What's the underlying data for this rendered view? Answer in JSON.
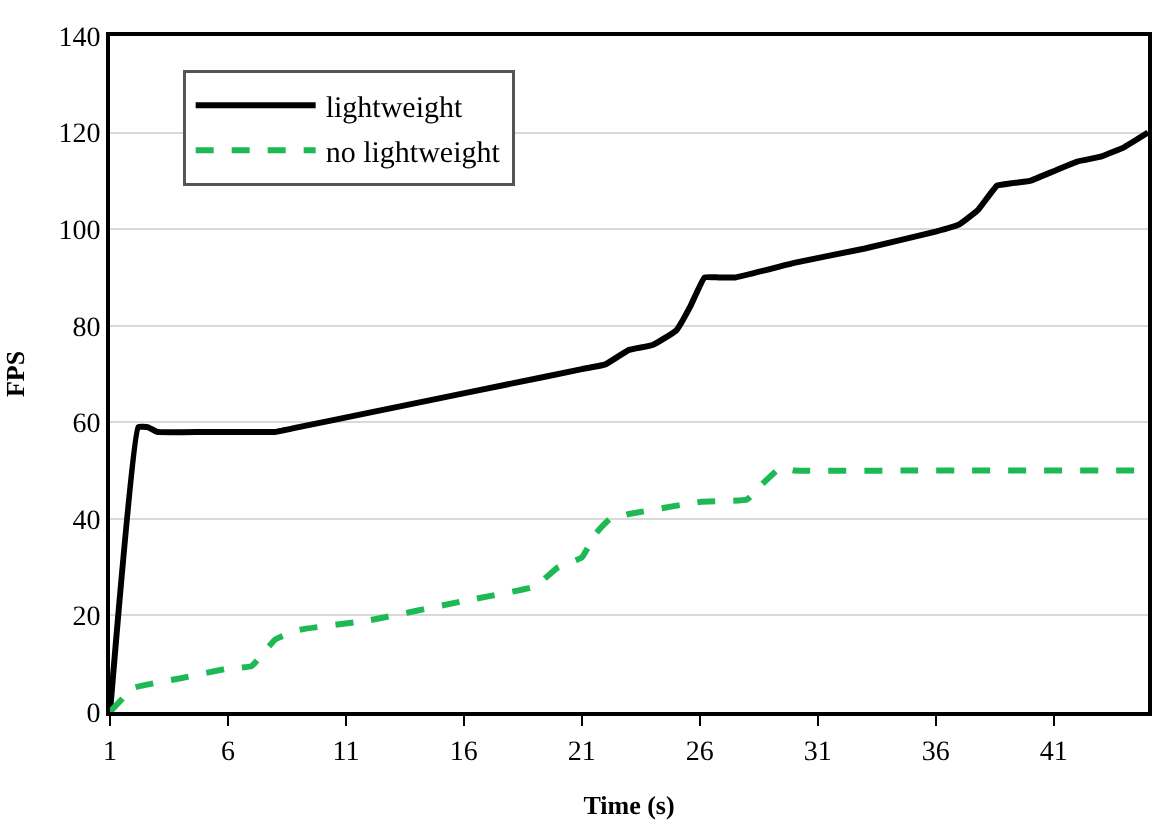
{
  "chart_data": {
    "type": "line",
    "xlabel": "Time (s)",
    "ylabel": "FPS",
    "xlim": [
      1,
      45
    ],
    "xticks": [
      1,
      6,
      11,
      16,
      21,
      26,
      31,
      36,
      41
    ],
    "ylim": [
      0,
      140
    ],
    "yticks": [
      0,
      20,
      40,
      60,
      80,
      100,
      120,
      140
    ],
    "grid": "y",
    "legend": "top left",
    "marker": "none",
    "series": [
      {
        "name": "lightweight",
        "color": "#000000",
        "line_style": "solid",
        "x": [
          1,
          2.2,
          2.6,
          3,
          5,
          7,
          8,
          9,
          12,
          15,
          18,
          21,
          22,
          23,
          24,
          25,
          25.6,
          26.2,
          26.8,
          27.5,
          30,
          33,
          36,
          37,
          37.8,
          38.6,
          39.2,
          40,
          41,
          42,
          43,
          44,
          45
        ],
        "values": [
          0,
          59,
          59,
          58,
          58,
          58,
          58,
          59,
          62,
          65,
          68,
          71,
          72,
          75,
          76,
          79,
          84,
          90,
          90,
          90,
          93,
          96,
          99.5,
          101,
          104,
          109,
          109.5,
          110,
          112,
          114,
          115,
          117,
          120
        ]
      },
      {
        "name": "no lightweight",
        "color": "#1db954",
        "line_style": "dashed",
        "x": [
          1,
          2,
          4,
          6,
          7,
          8,
          9,
          12,
          16,
          19,
          20,
          21,
          21.6,
          22.2,
          23,
          26,
          28,
          28.6,
          29.4,
          30,
          35,
          45
        ],
        "values": [
          0,
          5,
          7,
          9,
          9.5,
          15,
          17,
          19,
          23,
          26,
          30,
          32,
          37,
          40,
          41,
          43.5,
          44,
          47,
          50.5,
          50,
          50,
          50
        ]
      }
    ]
  }
}
